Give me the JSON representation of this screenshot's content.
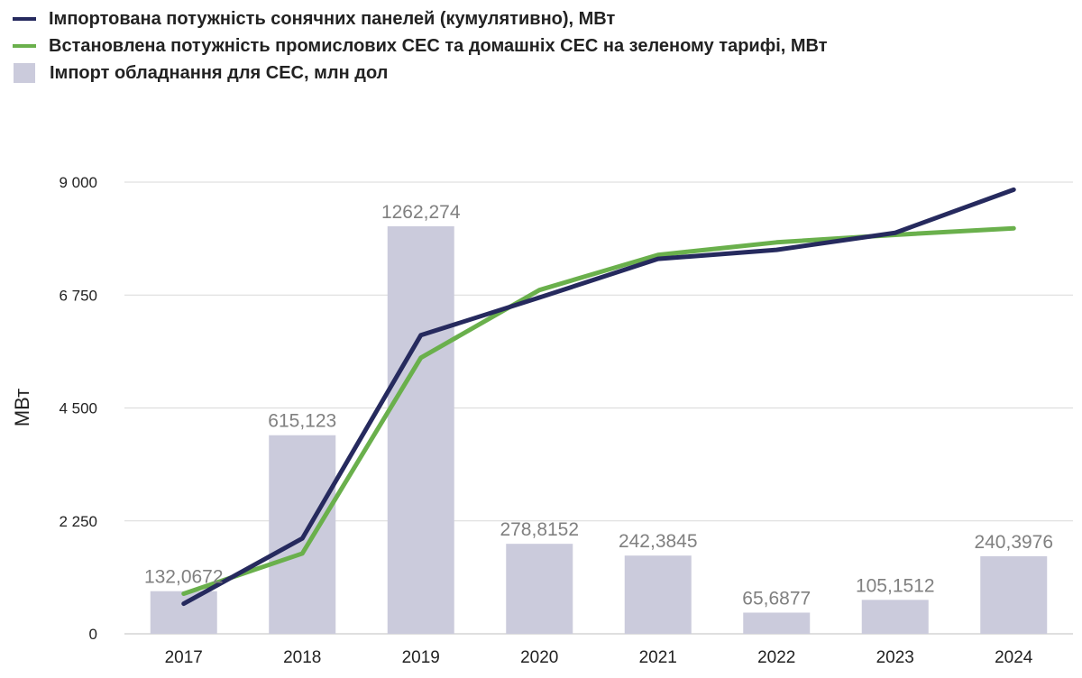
{
  "chart_data": {
    "type": "bar+line",
    "categories": [
      "2017",
      "2018",
      "2019",
      "2020",
      "2021",
      "2022",
      "2023",
      "2024"
    ],
    "ylabel": "МВт",
    "ylim": [
      0,
      9000
    ],
    "yticks": [
      0,
      2250,
      4500,
      6750,
      9000
    ],
    "ytick_labels": [
      "0",
      "2 250",
      "4 500",
      "6 750",
      "9 000"
    ],
    "grid": true,
    "legend_position": "top-left",
    "series": [
      {
        "name": "Імпортована потужність сонячних панелей (кумулятивно), МВт",
        "type": "line",
        "color": "#262a5e",
        "values": [
          600,
          1900,
          5950,
          6700,
          7470,
          7650,
          7990,
          8850
        ]
      },
      {
        "name": "Встановлена потужність промислових СЕС та домашніх СЕС на зеленому тарифі, МВт",
        "type": "line",
        "color": "#6ab04c",
        "values": [
          800,
          1600,
          5500,
          6850,
          7550,
          7800,
          7950,
          8080
        ]
      },
      {
        "name": "Імпорт обладнання для СЕС, млн дол",
        "type": "bar",
        "color": "#cbcbdc",
        "values": [
          132.0672,
          615.123,
          1262.274,
          278.8152,
          242.3845,
          65.6877,
          105.1512,
          240.3976
        ],
        "labels": [
          "132,0672",
          "615,123",
          "1262,274",
          "278,8152",
          "242,3845",
          "65,6877",
          "105,1512",
          "240,3976"
        ]
      }
    ]
  }
}
